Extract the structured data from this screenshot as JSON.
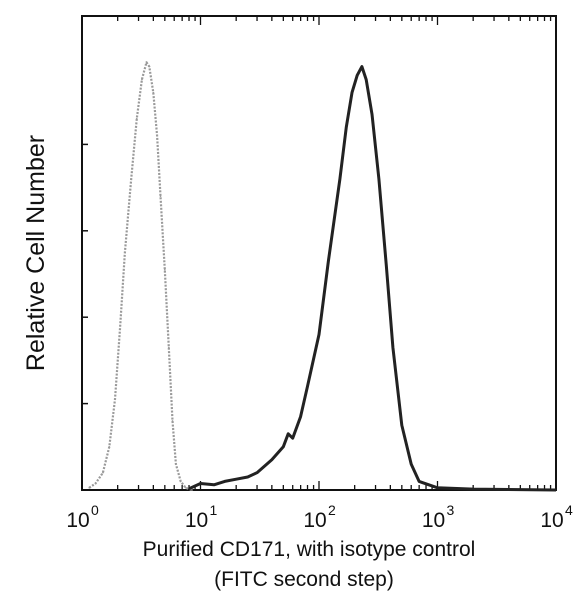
{
  "chart_data": {
    "type": "line",
    "title": "",
    "xlabel_lines": [
      "Purified CD171, with isotype control",
      "(FITC second step)"
    ],
    "ylabel": "Relative Cell Number",
    "x_scale": "log",
    "xlim": [
      1,
      10000
    ],
    "ylim": [
      0,
      100
    ],
    "grid": false,
    "legend": "none",
    "x_ticks": [
      {
        "value": 1,
        "base": "10",
        "exp": "0"
      },
      {
        "value": 10,
        "base": "10",
        "exp": "1"
      },
      {
        "value": 100,
        "base": "10",
        "exp": "2"
      },
      {
        "value": 1000,
        "base": "10",
        "exp": "3"
      },
      {
        "value": 10000,
        "base": "10",
        "exp": "4"
      }
    ],
    "y_ticks_unlabeled": [
      0,
      20,
      40,
      60,
      80
    ],
    "series": [
      {
        "color": "#9a9a9a",
        "style": "dotted",
        "x": [
          1.15,
          1.3,
          1.5,
          1.7,
          1.9,
          2.1,
          2.3,
          2.6,
          2.9,
          3.2,
          3.5,
          3.7,
          4.0,
          4.3,
          4.6,
          5.0,
          5.4,
          5.8,
          6.2,
          6.8,
          7.5,
          8.5
        ],
        "y": [
          0.5,
          1.5,
          4,
          10,
          21,
          38,
          55,
          72,
          86,
          95,
          99,
          98,
          92,
          82,
          68,
          51,
          33,
          16,
          6,
          2,
          0.5,
          0
        ]
      },
      {
        "color": "#222222",
        "style": "solid",
        "x": [
          8,
          10,
          13,
          16,
          20,
          25,
          30,
          40,
          50,
          55,
          60,
          70,
          80,
          100,
          120,
          150,
          170,
          190,
          210,
          230,
          250,
          280,
          320,
          370,
          420,
          500,
          600,
          700,
          1000,
          2000,
          10000
        ],
        "y": [
          0.3,
          1.5,
          1.2,
          2,
          2.5,
          3,
          4,
          7,
          10,
          13,
          12,
          17,
          24,
          36,
          53,
          72,
          84,
          92,
          96,
          98,
          95,
          87,
          72,
          52,
          33,
          15,
          6,
          2,
          0.5,
          0.2,
          0
        ]
      }
    ]
  }
}
